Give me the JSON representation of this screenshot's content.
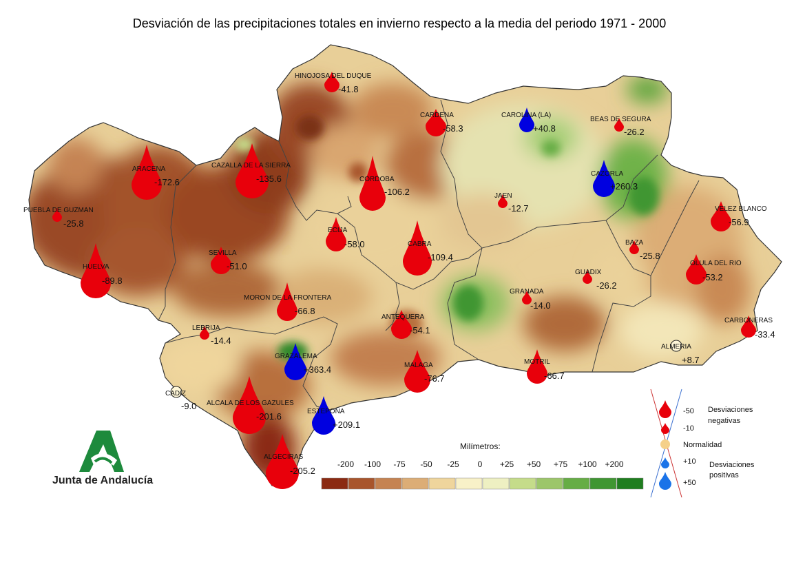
{
  "title": "Desviación de las precipitaciones totales en invierno respecto a la media del periodo 1971 - 2000",
  "logo_text": "Junta de Andalucía",
  "scale": {
    "title": "Milímetros:",
    "labels": [
      "-200",
      "-100",
      "-75",
      "-50",
      "-25",
      "0",
      "+25",
      "+50",
      "+75",
      "+100",
      "+200"
    ],
    "colors": [
      "#8b2a12",
      "#a8552c",
      "#c58352",
      "#dcad76",
      "#efd59c",
      "#f8f1c8",
      "#eef0c2",
      "#c5dc8a",
      "#9cc66a",
      "#66ad45",
      "#3f9632",
      "#1f7d1f"
    ]
  },
  "legend": {
    "minus50": "-50",
    "minus10": "-10",
    "negative_label_1": "Desviaciones",
    "negative_label_2": "negativas",
    "normal": "Normalidad",
    "plus10": "+10",
    "plus50": "+50",
    "positive_label_1": "Desviaciones",
    "positive_label_2": "positivas",
    "negative_color": "#e8000b",
    "positive_color": "#1a73e8",
    "normal_color": "#f5d08a"
  },
  "stations": [
    {
      "name": "HINOJOSA DEL DUQUE",
      "value": "-41.8",
      "kind": "neg"
    },
    {
      "name": "CARDENA",
      "value": "-58.3",
      "kind": "neg"
    },
    {
      "name": "CAROLINA (LA)",
      "value": "+40.8",
      "kind": "pos"
    },
    {
      "name": "BEAS DE SEGURA",
      "value": "-26.2",
      "kind": "neg"
    },
    {
      "name": "ARACENA",
      "value": "-172.6",
      "kind": "neg"
    },
    {
      "name": "CAZALLA DE LA SIERRA",
      "value": "-135.6",
      "kind": "neg"
    },
    {
      "name": "CORDOBA",
      "value": "-106.2",
      "kind": "neg"
    },
    {
      "name": "CAZORLA",
      "value": "+260.3",
      "kind": "pos"
    },
    {
      "name": "JAEN",
      "value": "-12.7",
      "kind": "neg"
    },
    {
      "name": "PUEBLA DE GUZMAN",
      "value": "-25.8",
      "kind": "neg"
    },
    {
      "name": "ECIJA",
      "value": "-58.0",
      "kind": "neg"
    },
    {
      "name": "VELEZ BLANCO",
      "value": "-56.9",
      "kind": "neg"
    },
    {
      "name": "SEVILLA",
      "value": "-51.0",
      "kind": "neg"
    },
    {
      "name": "CABRA",
      "value": "-109.4",
      "kind": "neg"
    },
    {
      "name": "BAZA",
      "value": "-25.8",
      "kind": "neg"
    },
    {
      "name": "HUELVA",
      "value": "-89.8",
      "kind": "neg"
    },
    {
      "name": "GUADIX",
      "value": "-26.2",
      "kind": "neg"
    },
    {
      "name": "OLULA DEL RIO",
      "value": "-53.2",
      "kind": "neg"
    },
    {
      "name": "MORON DE LA FRONTERA",
      "value": "-66.8",
      "kind": "neg"
    },
    {
      "name": "GRANADA",
      "value": "-14.0",
      "kind": "neg"
    },
    {
      "name": "LEBRIJA",
      "value": "-14.4",
      "kind": "neg"
    },
    {
      "name": "ANTEQUERA",
      "value": "-54.1",
      "kind": "neg"
    },
    {
      "name": "CARBONERAS",
      "value": "-33.4",
      "kind": "neg"
    },
    {
      "name": "GRAZALEMA",
      "value": "+363.4",
      "kind": "pos"
    },
    {
      "name": "MALAGA",
      "value": "-76.7",
      "kind": "neg"
    },
    {
      "name": "MOTRIL",
      "value": "-66.7",
      "kind": "neg"
    },
    {
      "name": "ALMERIA",
      "value": "+8.7",
      "kind": "normal"
    },
    {
      "name": "CADIZ",
      "value": "-9.0",
      "kind": "normal"
    },
    {
      "name": "ALCALA DE LOS GAZULES",
      "value": "-201.6",
      "kind": "neg"
    },
    {
      "name": "ESTEPONA",
      "value": "+209.1",
      "kind": "pos"
    },
    {
      "name": "ALGECIRAS",
      "value": "-205.2",
      "kind": "neg"
    }
  ]
}
